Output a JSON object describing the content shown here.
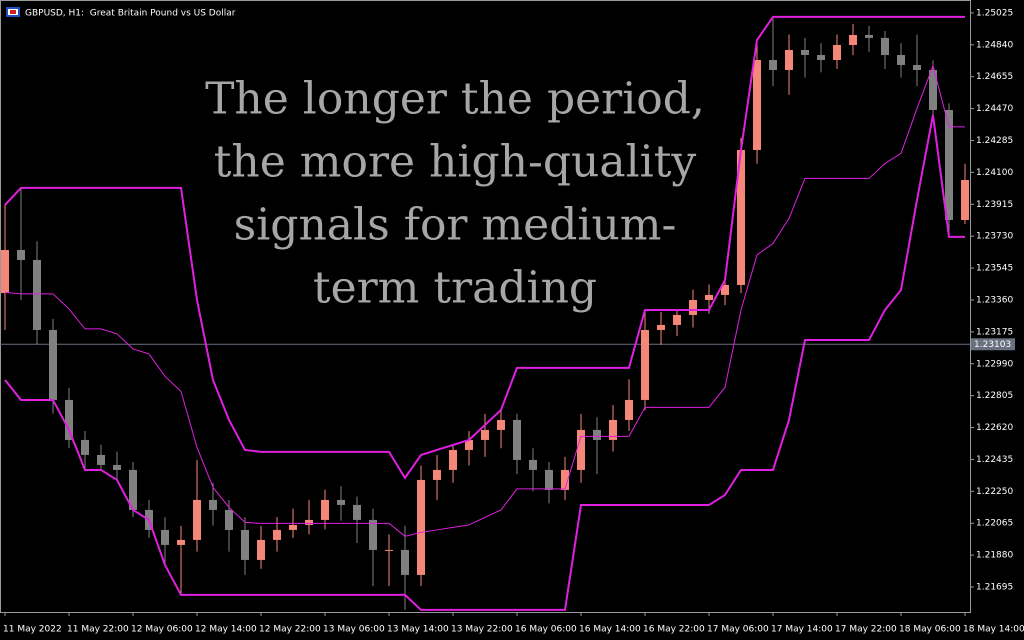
{
  "chart_data": {
    "type": "candlestick",
    "title": "GBPUSD, H1:  Great Britain Pound vs US Dollar",
    "annotation_lines": [
      "The longer the period,",
      "the more high-quality",
      "signals for medium-",
      "term trading"
    ],
    "categories": [
      "11 May 2022",
      null,
      null,
      null,
      "11 May 22:00",
      null,
      null,
      null,
      "12 May 06:00",
      null,
      null,
      null,
      "12 May 14:00",
      null,
      null,
      null,
      "12 May 22:00",
      null,
      null,
      null,
      "13 May 06:00",
      null,
      null,
      null,
      "13 May 14:00",
      null,
      null,
      null,
      "13 May 22:00",
      null,
      null,
      null,
      "16 May 06:00",
      null,
      null,
      null,
      "16 May 14:00",
      null,
      null,
      null,
      "16 May 22:00",
      null,
      null,
      null,
      "17 May 06:00",
      null,
      null,
      null,
      "17 May 14:00",
      null,
      null,
      null,
      "17 May 22:00",
      null,
      null,
      null,
      "18 May 06:00",
      null,
      null,
      null,
      "18 May 14:00"
    ],
    "open": [
      1.234,
      1.2365,
      1.23592,
      1.23186,
      1.2278,
      1.22548,
      1.22461,
      1.22403,
      1.22374,
      1.22142,
      1.22026,
      1.21939,
      1.21968,
      1.222,
      1.22142,
      1.22026,
      1.21852,
      1.21968,
      1.22026,
      1.22055,
      1.22084,
      1.222,
      1.22171,
      1.22084,
      1.2191,
      1.2191,
      1.21765,
      1.22316,
      1.22374,
      1.2249,
      1.22548,
      1.22606,
      1.22664,
      1.22432,
      1.22374,
      1.22258,
      1.22374,
      1.22606,
      1.22548,
      1.22664,
      1.2278,
      1.23186,
      1.23215,
      1.23273,
      1.2336,
      1.23389,
      1.23447,
      1.2423,
      1.24752,
      1.24694,
      1.2481,
      1.24781,
      1.24752,
      1.24839,
      1.24897,
      1.2488,
      1.24781,
      1.24723,
      1.24694,
      1.24462,
      1.23824
    ],
    "high": [
      1.23911,
      1.2401,
      1.237,
      1.2325,
      1.2285,
      1.226,
      1.2252,
      1.2248,
      1.2242,
      1.222,
      1.221,
      1.2205,
      1.22432,
      1.223,
      1.222,
      1.221,
      1.2205,
      1.221,
      1.2215,
      1.222,
      1.2226,
      1.2228,
      1.2222,
      1.2215,
      1.22,
      1.2205,
      1.224,
      1.22461,
      1.22519,
      1.226,
      1.227,
      1.22722,
      1.227,
      1.225,
      1.2242,
      1.2245,
      1.227,
      1.2268,
      1.2275,
      1.229,
      1.23302,
      1.2329,
      1.23302,
      1.2342,
      1.2345,
      1.23476,
      1.243,
      1.24868,
      1.25002,
      1.249,
      1.2488,
      1.2485,
      1.249,
      1.2496,
      1.2495,
      1.2492,
      1.2485,
      1.249,
      1.2475,
      1.245,
      1.2415
    ],
    "low": [
      1.23186,
      1.2336,
      1.231,
      1.227,
      1.225,
      1.22374,
      1.22374,
      1.22316,
      1.221,
      1.2198,
      1.21823,
      1.21649,
      1.219,
      1.2205,
      1.219,
      1.21765,
      1.218,
      1.219,
      1.2198,
      1.22,
      1.2203,
      1.2208,
      1.2195,
      1.217,
      1.217,
      1.21562,
      1.217,
      1.222,
      1.223,
      1.224,
      1.2245,
      1.225,
      1.2235,
      1.2225,
      1.2218,
      1.222,
      1.223,
      1.2235,
      1.2248,
      1.226,
      1.2272,
      1.231,
      1.2315,
      1.232,
      1.2328,
      1.2333,
      1.234,
      1.2415,
      1.246,
      1.2455,
      1.2465,
      1.2468,
      1.247,
      1.2478,
      1.248,
      1.247,
      1.2465,
      1.246,
      1.244,
      1.23726,
      1.238
    ],
    "close": [
      1.2365,
      1.23592,
      1.23186,
      1.2278,
      1.22548,
      1.22461,
      1.22403,
      1.22374,
      1.22142,
      1.22026,
      1.21939,
      1.21968,
      1.222,
      1.22142,
      1.22026,
      1.21852,
      1.21968,
      1.22026,
      1.22055,
      1.22084,
      1.222,
      1.22171,
      1.22084,
      1.2191,
      1.2191,
      1.21765,
      1.22316,
      1.22374,
      1.2249,
      1.22548,
      1.22606,
      1.22664,
      1.22432,
      1.22374,
      1.22258,
      1.22374,
      1.22606,
      1.22548,
      1.22664,
      1.2278,
      1.23186,
      1.23215,
      1.23273,
      1.2336,
      1.23389,
      1.23447,
      1.2423,
      1.24752,
      1.24694,
      1.2481,
      1.24781,
      1.24752,
      1.24839,
      1.24897,
      1.2488,
      1.24781,
      1.24723,
      1.24694,
      1.24462,
      1.23824,
      1.24056
    ],
    "up_color": "#f4877a",
    "down_color": "#808080",
    "series": [
      {
        "color": "#e020e0",
        "line_width": 2,
        "values": [
          1.23911,
          1.2401,
          1.2401,
          1.2401,
          1.2401,
          1.2401,
          1.2401,
          1.2401,
          1.2401,
          1.2401,
          1.2401,
          1.2401,
          1.2336,
          1.22896,
          1.22664,
          1.2249,
          1.22479,
          1.22479,
          1.22479,
          1.22479,
          1.22479,
          1.22479,
          1.22479,
          1.22479,
          1.22479,
          1.22328,
          1.22461,
          1.2249,
          1.22519,
          1.22548,
          1.22635,
          1.22722,
          1.22966,
          1.22966,
          1.22966,
          1.22966,
          1.22966,
          1.22966,
          1.22966,
          1.22966,
          1.23302,
          1.23302,
          1.23302,
          1.23302,
          1.23302,
          1.23476,
          1.2423,
          1.24868,
          1.25002,
          1.25002,
          1.25002,
          1.25002,
          1.25002,
          1.25002,
          1.25002,
          1.25002,
          1.25002,
          1.25002,
          1.25002,
          1.25002,
          1.25002
        ]
      },
      {
        "color": "#e020e0",
        "line_width": 1,
        "values": [
          1.23404,
          1.23395,
          1.23395,
          1.23395,
          1.23308,
          1.23192,
          1.23192,
          1.23163,
          1.23076,
          1.23047,
          1.22917,
          1.2283,
          1.22505,
          1.22273,
          1.22157,
          1.2207,
          1.22064,
          1.22064,
          1.22064,
          1.22064,
          1.22064,
          1.22064,
          1.22064,
          1.22064,
          1.22064,
          1.21989,
          1.22012,
          1.22026,
          1.22041,
          1.22055,
          1.22099,
          1.22142,
          1.22264,
          1.22264,
          1.22264,
          1.22264,
          1.22569,
          1.22569,
          1.22569,
          1.22569,
          1.22737,
          1.22737,
          1.22737,
          1.22737,
          1.22737,
          1.22853,
          1.23302,
          1.23621,
          1.23688,
          1.23833,
          1.24065,
          1.24065,
          1.24065,
          1.24065,
          1.24065,
          1.24152,
          1.2421,
          1.24471,
          1.24718,
          1.24364,
          1.24364
        ]
      },
      {
        "color": "#e020e0",
        "line_width": 2,
        "values": [
          1.22896,
          1.2278,
          1.2278,
          1.2278,
          1.22606,
          1.22374,
          1.22374,
          1.22316,
          1.22142,
          1.22084,
          1.21823,
          1.21649,
          1.21649,
          1.21649,
          1.21649,
          1.21649,
          1.21649,
          1.21649,
          1.21649,
          1.21649,
          1.21649,
          1.21649,
          1.21649,
          1.21649,
          1.21649,
          1.21649,
          1.21562,
          1.21562,
          1.21562,
          1.21562,
          1.21562,
          1.21562,
          1.21562,
          1.21562,
          1.21562,
          1.21562,
          1.22171,
          1.22171,
          1.22171,
          1.22171,
          1.22171,
          1.22171,
          1.22171,
          1.22171,
          1.22171,
          1.22229,
          1.22374,
          1.22374,
          1.22374,
          1.22664,
          1.23128,
          1.23128,
          1.23128,
          1.23128,
          1.23128,
          1.23302,
          1.23418,
          1.2394,
          1.24433,
          1.23726,
          1.23726
        ]
      }
    ],
    "current_price": 1.23103,
    "ylim": [
      1.2155,
      1.251
    ],
    "yticks": [
      1.25025,
      {
        "value": 1.2484,
        "label": "1.24840"
      },
      1.24655,
      {
        "value": 1.2447,
        "label": "1.24470"
      },
      1.24285,
      {
        "value": 1.241,
        "label": "1.24100"
      },
      1.23915,
      {
        "value": 1.2373,
        "label": "1.23730"
      },
      1.23545,
      {
        "value": 1.2336,
        "label": "1.23360"
      },
      1.23175,
      {
        "value": 1.2299,
        "label": "1.22990"
      },
      1.22805,
      {
        "value": 1.2262,
        "label": "1.22620"
      },
      1.22435,
      {
        "value": 1.2225,
        "label": "1.22250"
      },
      1.22065,
      {
        "value": 1.2188,
        "label": "1.21880"
      },
      1.21695
    ]
  }
}
